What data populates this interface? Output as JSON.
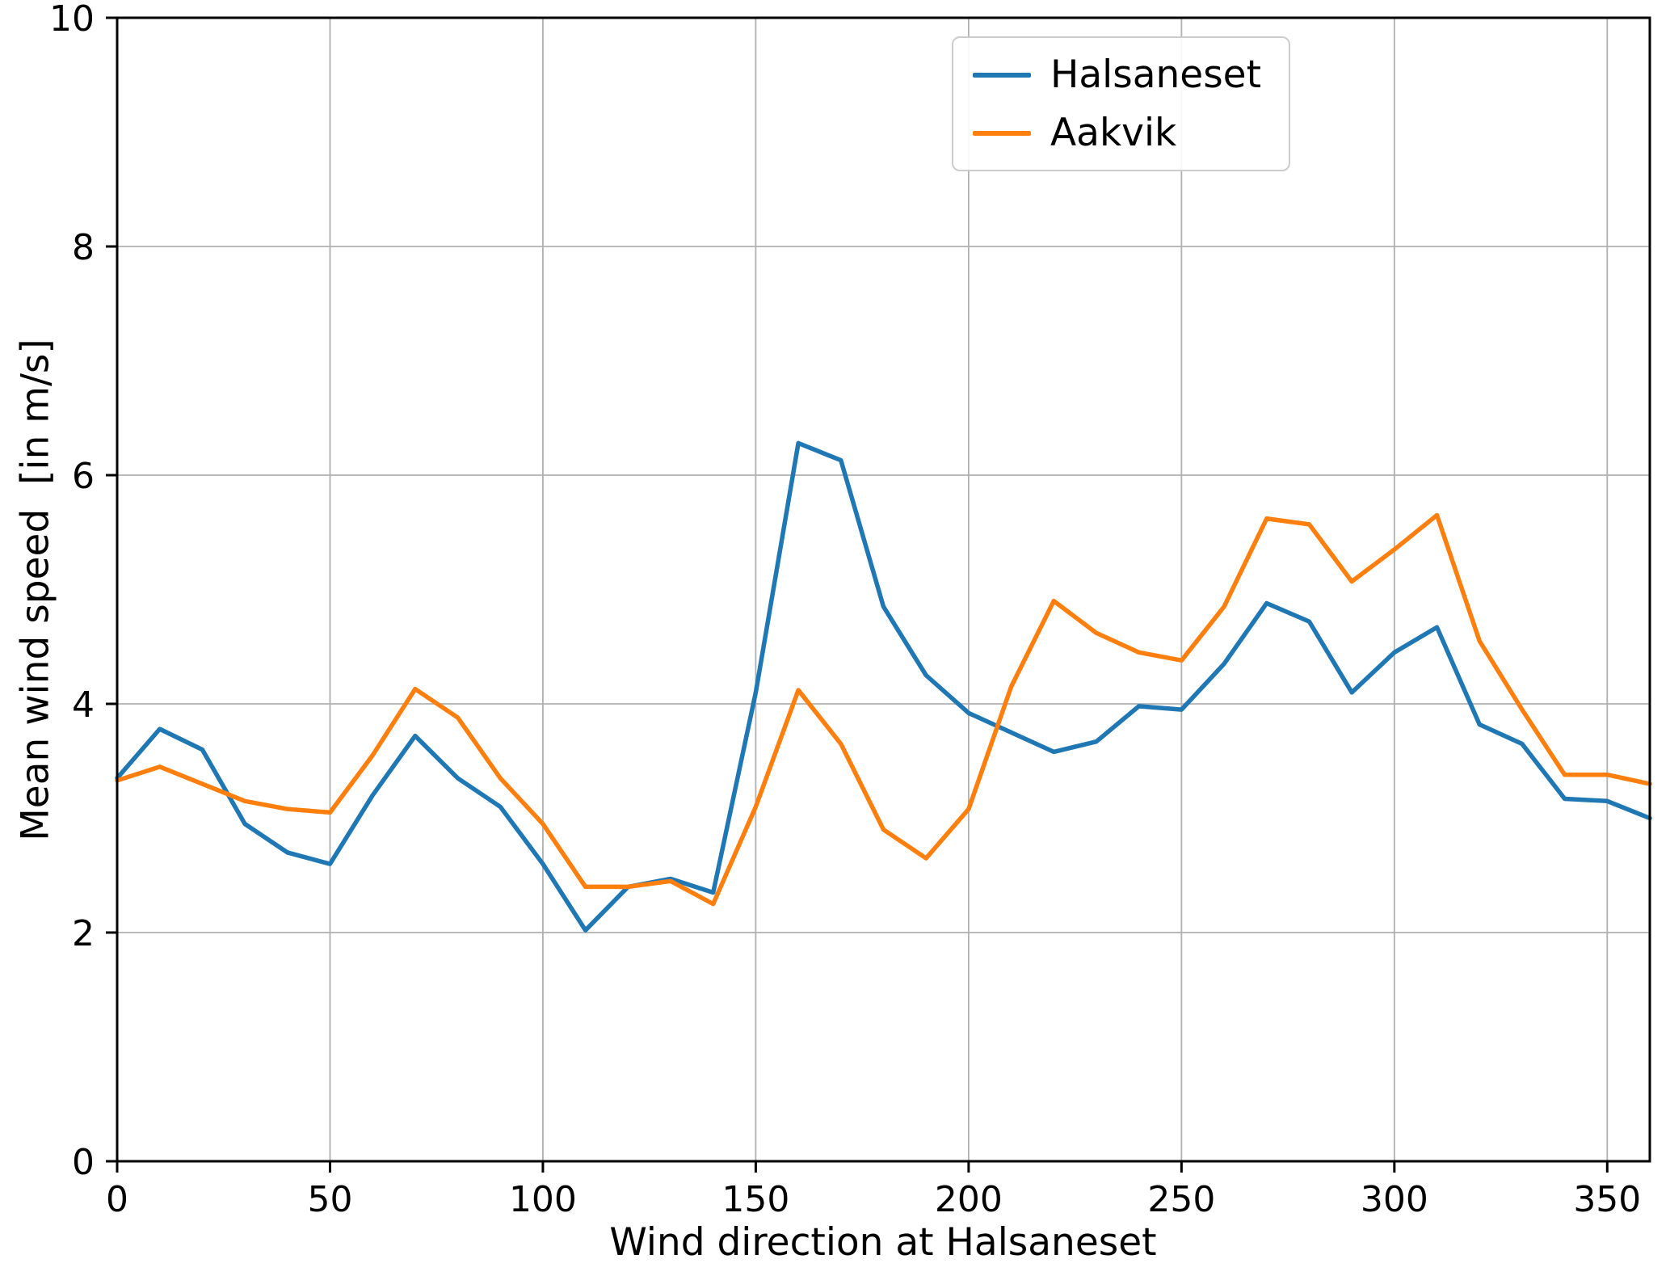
{
  "chart_data": {
    "type": "line",
    "title": "",
    "xlabel": "Wind direction at Halsaneset",
    "ylabel": "Mean wind speed  [in m/s]",
    "xlim": [
      0,
      360
    ],
    "ylim": [
      0,
      10
    ],
    "xticks": [
      0,
      50,
      100,
      150,
      200,
      250,
      300,
      350
    ],
    "yticks": [
      0,
      2,
      4,
      6,
      8,
      10
    ],
    "grid": true,
    "legend_position": "upper right",
    "x": [
      0,
      10,
      20,
      30,
      40,
      50,
      60,
      70,
      80,
      90,
      100,
      110,
      120,
      130,
      140,
      150,
      160,
      170,
      180,
      190,
      200,
      210,
      220,
      230,
      240,
      250,
      260,
      270,
      280,
      290,
      300,
      310,
      320,
      330,
      340,
      350,
      360
    ],
    "series": [
      {
        "name": "Halsaneset",
        "color": "#1f77b4",
        "values": [
          3.35,
          3.78,
          3.6,
          2.95,
          2.7,
          2.6,
          3.2,
          3.72,
          3.35,
          3.1,
          2.6,
          2.02,
          2.4,
          2.47,
          2.35,
          4.1,
          6.28,
          6.13,
          4.85,
          4.25,
          3.92,
          3.75,
          3.58,
          3.67,
          3.98,
          3.95,
          4.35,
          4.88,
          4.72,
          4.1,
          4.45,
          4.67,
          3.82,
          3.65,
          3.17,
          3.15,
          3.0
        ]
      },
      {
        "name": "Aakvik",
        "color": "#ff7f0e",
        "values": [
          3.33,
          3.45,
          3.3,
          3.15,
          3.08,
          3.05,
          3.55,
          4.13,
          3.88,
          3.35,
          2.95,
          2.4,
          2.4,
          2.45,
          2.25,
          3.1,
          4.12,
          3.65,
          2.9,
          2.65,
          3.08,
          4.15,
          4.9,
          4.62,
          4.45,
          4.38,
          4.85,
          5.62,
          5.57,
          5.07,
          5.35,
          5.65,
          4.55,
          3.95,
          3.38,
          3.38,
          3.3
        ]
      }
    ]
  },
  "styles": {
    "grid_color": "#b0b0b0",
    "axis_color": "#000000",
    "background": "#ffffff",
    "legend_border": "#cccccc"
  }
}
